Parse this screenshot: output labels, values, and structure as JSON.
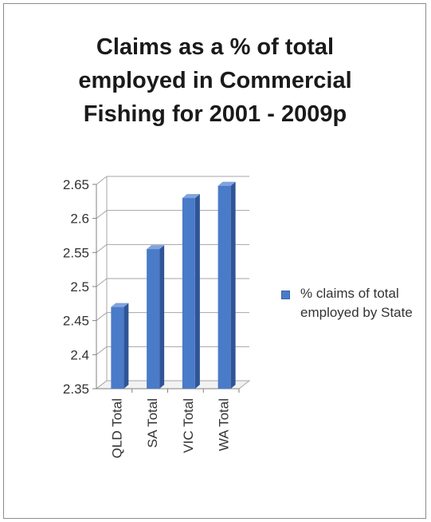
{
  "chart_data": {
    "type": "bar",
    "title_lines": [
      "Claims as a % of total",
      "employed in Commercial",
      "Fishing for 2001 - 2009p"
    ],
    "categories": [
      "QLD Total",
      "SA Total",
      "VIC Total",
      "WA Total"
    ],
    "series": [
      {
        "name": "% claims of total employed by State",
        "values": [
          2.47,
          2.555,
          2.63,
          2.648
        ]
      }
    ],
    "ylim": [
      2.35,
      2.65
    ],
    "yticks": [
      "2.35",
      "2.4",
      "2.45",
      "2.5",
      "2.55",
      "2.6",
      "2.65"
    ],
    "grid": true,
    "legend_position": "right",
    "bar_color": "#4a7bc8"
  }
}
